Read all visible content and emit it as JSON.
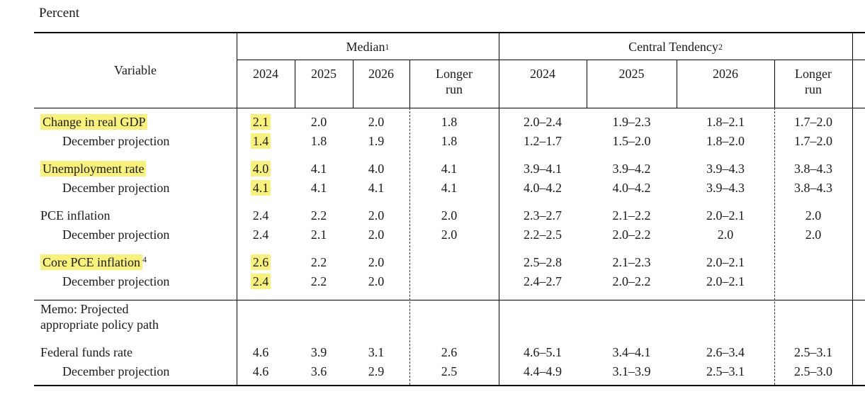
{
  "page": {
    "units_label": "Percent"
  },
  "colors": {
    "highlight": "#f8f17a",
    "rule": "#000000",
    "text": "#1a1a1a",
    "background": "#ffffff"
  },
  "header": {
    "variable": "Variable",
    "median": {
      "label": "Median",
      "sup": "1"
    },
    "central_tendency": {
      "label": "Central Tendency",
      "sup": "2"
    },
    "median_years": [
      "2024",
      "2025",
      "2026",
      "Longer run"
    ],
    "central_tendency_years": [
      "2024",
      "2025",
      "2026",
      "Longer run"
    ]
  },
  "chart_data": {
    "type": "table",
    "title": "Percent",
    "columns": [
      "Variable",
      "Median 2024",
      "Median 2025",
      "Median 2026",
      "Median Longer run",
      "Central Tendency 2024",
      "Central Tendency 2025",
      "Central Tendency 2026",
      "Central Tendency Longer run"
    ],
    "note": "right-most column of source table is cut off at image edge"
  },
  "rows": [
    {
      "label": "Change in real GDP",
      "highlight_label": true,
      "highlight_median_2024": true,
      "median": [
        "2.1",
        "2.0",
        "2.0",
        "1.8"
      ],
      "central_tendency": [
        "2.0–2.4",
        "1.9–2.3",
        "1.8–2.1",
        "1.7–2.0"
      ]
    },
    {
      "label": "December projection",
      "indent": true,
      "highlight_median_2024": true,
      "median": [
        "1.4",
        "1.8",
        "1.9",
        "1.8"
      ],
      "central_tendency": [
        "1.2–1.7",
        "1.5–2.0",
        "1.8–2.0",
        "1.7–2.0"
      ]
    },
    {
      "label": "Unemployment rate",
      "highlight_label": true,
      "highlight_median_2024": true,
      "median": [
        "4.0",
        "4.1",
        "4.0",
        "4.1"
      ],
      "central_tendency": [
        "3.9–4.1",
        "3.9–4.2",
        "3.9–4.3",
        "3.8–4.3"
      ]
    },
    {
      "label": "December projection",
      "indent": true,
      "highlight_median_2024": true,
      "median": [
        "4.1",
        "4.1",
        "4.1",
        "4.1"
      ],
      "central_tendency": [
        "4.0–4.2",
        "4.0–4.2",
        "3.9–4.3",
        "3.8–4.3"
      ]
    },
    {
      "label": "PCE inflation",
      "median": [
        "2.4",
        "2.2",
        "2.0",
        "2.0"
      ],
      "central_tendency": [
        "2.3–2.7",
        "2.1–2.2",
        "2.0–2.1",
        "2.0"
      ]
    },
    {
      "label": "December projection",
      "indent": true,
      "median": [
        "2.4",
        "2.1",
        "2.0",
        "2.0"
      ],
      "central_tendency": [
        "2.2–2.5",
        "2.0–2.2",
        "2.0",
        "2.0"
      ]
    },
    {
      "label": "Core PCE inflation",
      "sup": "4",
      "highlight_label": true,
      "highlight_median_2024": true,
      "median": [
        "2.6",
        "2.2",
        "2.0",
        ""
      ],
      "central_tendency": [
        "2.5–2.8",
        "2.1–2.3",
        "2.0–2.1",
        ""
      ]
    },
    {
      "label": "December projection",
      "indent": true,
      "highlight_median_2024": true,
      "median": [
        "2.4",
        "2.2",
        "2.0",
        ""
      ],
      "central_tendency": [
        "2.4–2.7",
        "2.0–2.2",
        "2.0–2.1",
        ""
      ]
    },
    {
      "label": "Memo: Projected appropriate policy path",
      "memo": true
    },
    {
      "label": "Federal funds rate",
      "median": [
        "4.6",
        "3.9",
        "3.1",
        "2.6"
      ],
      "central_tendency": [
        "4.6–5.1",
        "3.4–4.1",
        "2.6–3.4",
        "2.5–3.1"
      ]
    },
    {
      "label": "December projection",
      "indent": true,
      "median": [
        "4.6",
        "3.6",
        "2.9",
        "2.5"
      ],
      "central_tendency": [
        "4.4–4.9",
        "3.1–3.9",
        "2.5–3.1",
        "2.5–3.0"
      ]
    }
  ]
}
